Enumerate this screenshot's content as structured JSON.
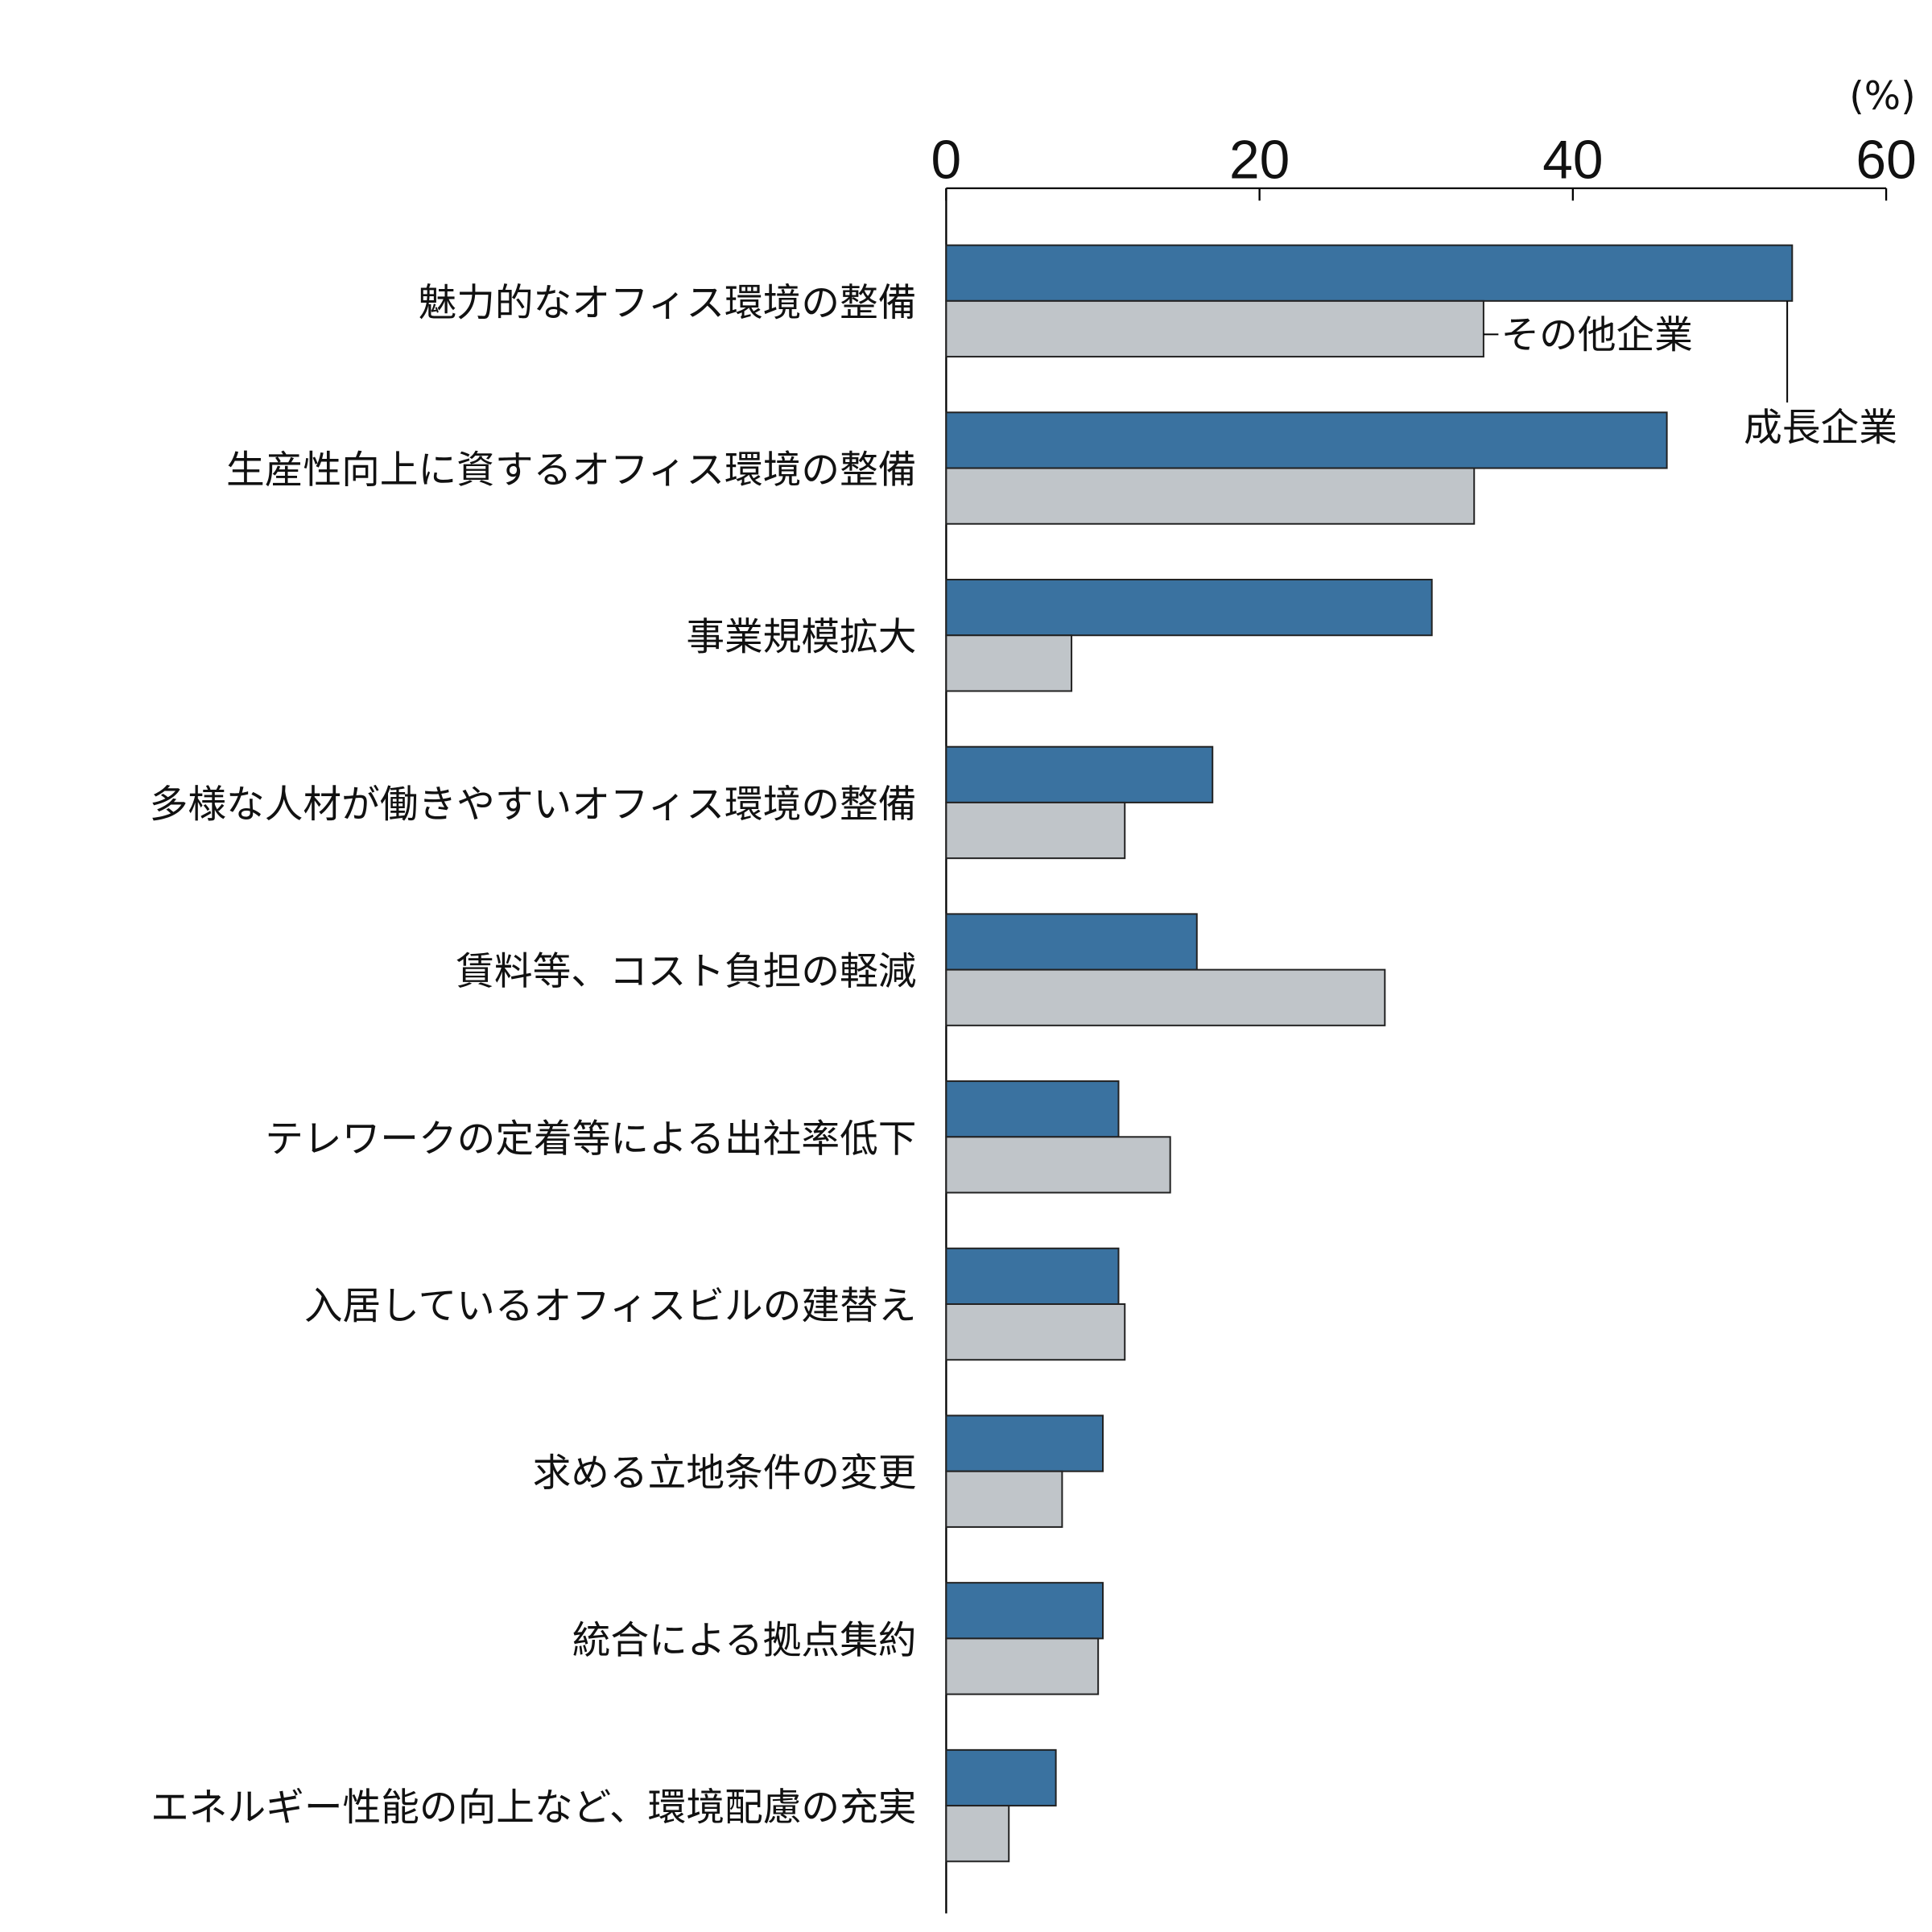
{
  "chart_data": {
    "type": "bar",
    "orientation": "horizontal",
    "unit_label": "(%)",
    "xlim": [
      0,
      60
    ],
    "xticks": [
      "0",
      "20",
      "40",
      "60"
    ],
    "grid": false,
    "categories": [
      "魅力的なオフィス環境の整備",
      "生産性向上に資するオフィス環境の整備",
      "事業規模拡大",
      "多様な人材が働きやすいオフィス環境の整備",
      "賃料等、コスト負担の軽減",
      "テレワークの定着等による出社率低下",
      "入居しているオフィスビルの建替え",
      "求める立地条件の変更",
      "統合による拠点集約",
      "エネルギー性能の向上など、環境配慮の充実"
    ],
    "series": [
      {
        "name": "成長企業",
        "color": "#3a72a0",
        "values": [
          54.0,
          46.0,
          31.0,
          17.0,
          16.0,
          11.0,
          11.0,
          10.0,
          10.0,
          7.0
        ]
      },
      {
        "name": "その他企業",
        "color": "#c0c5c9",
        "values": [
          34.3,
          33.7,
          8.0,
          11.4,
          28.0,
          14.3,
          11.4,
          7.4,
          9.7,
          4.0
        ]
      }
    ],
    "legend": "inline-annotations"
  }
}
